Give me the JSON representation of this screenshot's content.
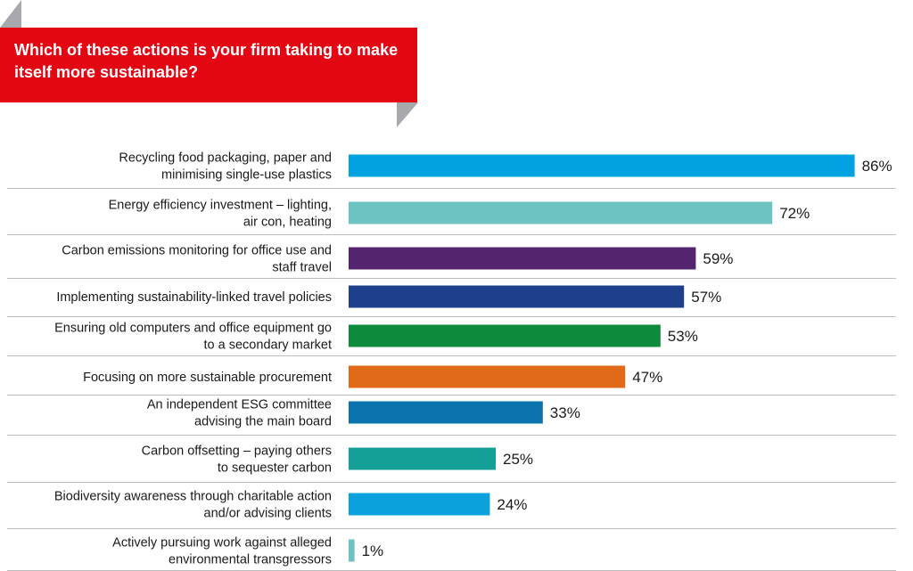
{
  "chart_data": {
    "type": "bar",
    "orientation": "horizontal",
    "title": "Which of these actions is your firm taking to make itself more sustainable?",
    "categories": [
      [
        "Recycling food packaging, paper and",
        "minimising single-use plastics"
      ],
      [
        "Energy efficiency investment – lighting,",
        "air con, heating"
      ],
      [
        "Carbon emissions monitoring for office use and",
        "staff travel"
      ],
      [
        "Implementing sustainability-linked travel policies"
      ],
      [
        "Ensuring old computers and office equipment go",
        "to a secondary market"
      ],
      [
        "Focusing on more sustainable procurement"
      ],
      [
        "An independent ESG committee",
        "advising the main board"
      ],
      [
        "Carbon offsetting – paying others",
        "to sequester carbon"
      ],
      [
        "Biodiversity awareness through charitable action",
        "and/or advising clients"
      ],
      [
        "Actively pursuing work against alleged",
        "environmental transgressors"
      ]
    ],
    "values": [
      86,
      72,
      59,
      57,
      53,
      47,
      33,
      25,
      24,
      1
    ],
    "value_labels": [
      "86%",
      "72%",
      "59%",
      "57%",
      "53%",
      "47%",
      "33%",
      "25%",
      "24%",
      "1%"
    ],
    "colors": [
      "#00a3e0",
      "#6cc3c1",
      "#55246e",
      "#1e3f8c",
      "#0e8a3c",
      "#e06a17",
      "#0a73ad",
      "#14a097",
      "#0aa1dc",
      "#6cc3c1"
    ],
    "xlim": [
      0,
      100
    ],
    "grid": false,
    "legend": "none"
  },
  "theme": {
    "banner_color": "#e30613",
    "fold_color": "#a7a9ac",
    "separator_color": "#bcbcbc"
  }
}
